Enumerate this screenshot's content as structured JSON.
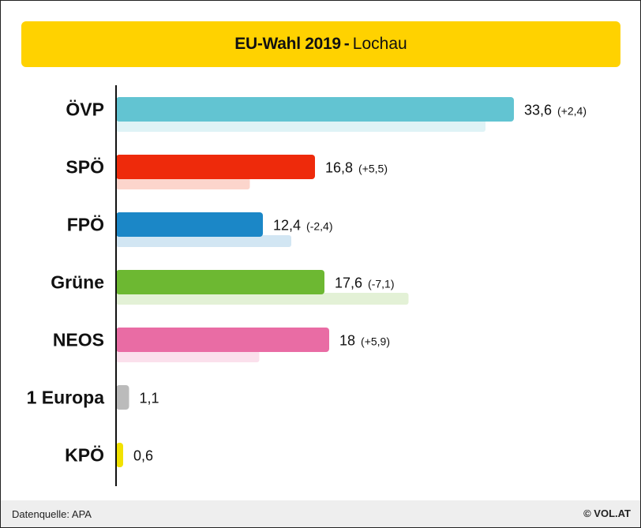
{
  "header": {
    "title": "EU-Wahl 2019",
    "separator": "-",
    "subtitle": "Lochau"
  },
  "chart_data": {
    "type": "bar",
    "orientation": "horizontal",
    "categories": [
      "ÖVP",
      "SPÖ",
      "FPÖ",
      "Grüne",
      "NEOS",
      "1 Europa",
      "KPÖ"
    ],
    "series": [
      {
        "values": [
          33.6,
          16.8,
          12.4,
          17.6,
          18,
          1.1,
          0.6
        ]
      },
      {
        "values": [
          31.2,
          11.3,
          14.8,
          24.7,
          12.1,
          null,
          null
        ]
      }
    ],
    "value_labels": [
      "33,6",
      "16,8",
      "12,4",
      "17,6",
      "18",
      "1,1",
      "0,6"
    ],
    "change_labels": [
      "(+2,4)",
      "(+5,5)",
      "(-2,4)",
      "(-7,1)",
      "(+5,9)",
      "",
      ""
    ],
    "colors": [
      "#62c4d2",
      "#ee2a0b",
      "#1b87c7",
      "#6db832",
      "#e96ca4",
      "#bbbbbb",
      "#f2e200"
    ],
    "previous_colors": [
      "#dff3f6",
      "#fcd5cc",
      "#d2e6f3",
      "#e3f1d6",
      "#fbe0ec",
      "#eeeeee",
      "#fdf9cc"
    ],
    "xlim": [
      0,
      34
    ],
    "grid": false,
    "legend": "none"
  },
  "footer": {
    "source": "Datenquelle: APA",
    "brand": "© VOL.AT"
  }
}
